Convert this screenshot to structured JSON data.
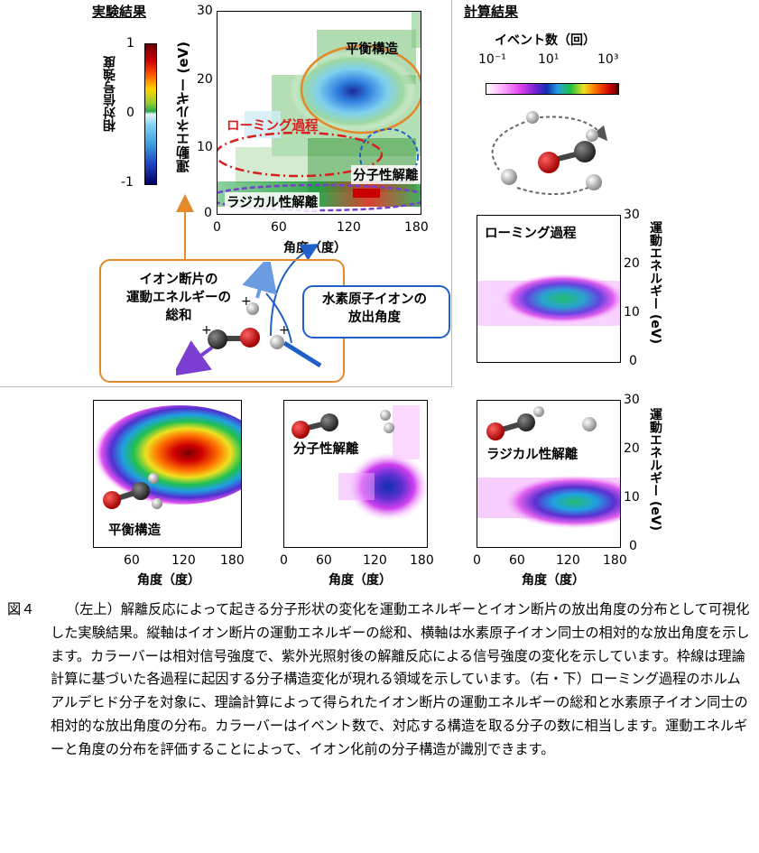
{
  "sections": {
    "experiment": "実験結果",
    "calculation": "計算結果"
  },
  "experiment_plot": {
    "ylabel": "運動エネルギー (eV)",
    "xlabel": "角度（度）",
    "yticks": [
      "30",
      "20",
      "10",
      "0"
    ],
    "xticks": [
      "0",
      "60",
      "120",
      "180"
    ],
    "regions": {
      "equilibrium": "平衡構造",
      "roaming": "ローミング過程",
      "molecular": "分子性解離",
      "radical": "ラジカル性解離"
    }
  },
  "exp_colorbar": {
    "label": "相対信号強度",
    "ticks": [
      "1",
      "0",
      "-1"
    ]
  },
  "calc_colorbar": {
    "title": "イベント数（回）",
    "ticks": [
      "10⁻¹",
      "10¹",
      "10³"
    ]
  },
  "schematic": {
    "kinetic_box": [
      "イオン断片の",
      "運動エネルギーの",
      "総和"
    ],
    "angle_box": [
      "水素原子イオンの",
      "放出角度"
    ],
    "plus": "+"
  },
  "calc_panels": {
    "roaming": "ローミング過程",
    "equilibrium": "平衡構造",
    "molecular": "分子性解離",
    "radical": "ラジカル性解離",
    "ylabel": "運動エネルギー (eV)",
    "xlabel": "角度（度）",
    "yticks": [
      "30",
      "20",
      "10",
      "0"
    ],
    "xticks_full": [
      "0",
      "60",
      "120",
      "180"
    ],
    "xticks_short": [
      "60",
      "120",
      "180"
    ]
  },
  "caption": {
    "number": "図４",
    "text": "（左上）解離反応によって起きる分子形状の変化を運動エネルギーとイオン断片の放出角度の分布として可視化した実験結果。縦軸はイオン断片の運動エネルギーの総和、横軸は水素原子イオン同士の相対的な放出角度を示します。カラーバーは相対信号強度で、紫外光照射後の解離反応による信号強度の変化を示しています。枠線は理論計算に基づいた各過程に起因する分子構造変化が現れる領域を示しています。（右・下）ローミング過程のホルムアルデヒド分子を対象に、理論計算によって得られたイオン断片の運動エネルギーの総和と水素原子イオン同士の相対的な放出角度の分布。カラーバーはイベント数で、対応する構造を取る分子の数に相当します。運動エネルギーと角度の分布を評価することによって、イオン化前の分子構造が識別できます。"
  },
  "colors": {
    "orange": "#e3892a",
    "red": "#d81e1e",
    "blue": "#1f5fc7",
    "purple": "#7a3fd1"
  }
}
